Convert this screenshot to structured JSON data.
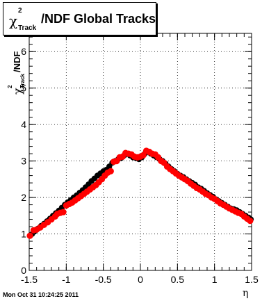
{
  "chart_data": {
    "type": "scatter",
    "title": {
      "symbol": "χ",
      "superscript": "2",
      "subscript": "Track",
      "text": "/NDF  Global Tracks"
    },
    "ylabel": {
      "symbol": "χ",
      "superscript": "2",
      "subscript": "Track",
      "text": "/NDF"
    },
    "xlabel": "η",
    "xlim": [
      -1.5,
      1.5
    ],
    "ylim": [
      0,
      6.5
    ],
    "xticks": [
      -1.5,
      -1,
      -0.5,
      0,
      0.5,
      1,
      1.5
    ],
    "xtick_labels": [
      "-1.5",
      "-1",
      "-0.5",
      "0",
      "0.5",
      "1",
      "1.5"
    ],
    "yticks": [
      0,
      1,
      2,
      3,
      4,
      5,
      6
    ],
    "ytick_labels": [
      "0",
      "1",
      "2",
      "3",
      "4",
      "5",
      "6"
    ],
    "grid": true,
    "series": [
      {
        "color": "#000000",
        "x": [
          -1.48,
          -1.46,
          -1.42,
          -1.38,
          -1.34,
          -1.3,
          -1.26,
          -1.22,
          -1.18,
          -1.14,
          -1.1,
          -1.06,
          -1.02,
          -0.98,
          -0.94,
          -0.9,
          -0.86,
          -0.82,
          -0.78,
          -0.74,
          -0.7,
          -0.66,
          -0.62,
          -0.58,
          -0.54,
          -0.5,
          -0.46,
          -0.42,
          -0.38,
          -0.34,
          -0.3,
          -0.26,
          -0.22,
          -0.18,
          -0.14,
          -0.1,
          -0.06,
          -0.02,
          0.02,
          0.06,
          0.1,
          0.14,
          0.18,
          0.22,
          0.26,
          0.3,
          0.34,
          0.38,
          0.42,
          0.46,
          0.5,
          0.54,
          0.58,
          0.62,
          0.66,
          0.7,
          0.74,
          0.78,
          0.82,
          0.86,
          0.9,
          0.94,
          0.98,
          1.02,
          1.06,
          1.1,
          1.14,
          1.18,
          1.22,
          1.26,
          1.3,
          1.34,
          1.38,
          1.42,
          1.46,
          1.49
        ],
        "y": [
          0.97,
          1.0,
          1.08,
          1.15,
          1.22,
          1.28,
          1.35,
          1.42,
          1.5,
          1.57,
          1.64,
          1.72,
          1.8,
          1.87,
          1.93,
          2.0,
          2.06,
          2.13,
          2.2,
          2.28,
          2.36,
          2.45,
          2.52,
          2.6,
          2.66,
          2.72,
          2.76,
          2.85,
          2.95,
          3.0,
          3.05,
          3.08,
          3.15,
          3.2,
          3.15,
          3.1,
          3.08,
          3.05,
          3.1,
          3.2,
          3.25,
          3.2,
          3.15,
          3.1,
          3.05,
          3.0,
          2.93,
          2.85,
          2.78,
          2.72,
          2.65,
          2.6,
          2.56,
          2.5,
          2.45,
          2.4,
          2.35,
          2.28,
          2.24,
          2.18,
          2.12,
          2.07,
          2.02,
          1.95,
          1.9,
          1.85,
          1.8,
          1.75,
          1.7,
          1.68,
          1.65,
          1.6,
          1.55,
          1.5,
          1.45,
          1.4
        ]
      },
      {
        "color": "#ff0000",
        "x": [
          -1.49,
          -1.44,
          -1.4,
          -1.35,
          -1.3,
          -1.25,
          -1.2,
          -1.15,
          -1.12,
          -1.08,
          -1.04,
          -1.0,
          -0.96,
          -0.92,
          -0.88,
          -0.84,
          -0.8,
          -0.76,
          -0.72,
          -0.68,
          -0.64,
          -0.6,
          -0.56,
          -0.52,
          -0.48,
          -0.44,
          -0.4,
          -0.36,
          -0.32,
          -0.28,
          -0.24,
          -0.2,
          -0.16,
          -0.12,
          -0.08,
          -0.04,
          0.0,
          0.04,
          0.08,
          0.12,
          0.16,
          0.2,
          0.24,
          0.28,
          0.32,
          0.36,
          0.4,
          0.44,
          0.48,
          0.52,
          0.56,
          0.6,
          0.64,
          0.68,
          0.72,
          0.76,
          0.8,
          0.84,
          0.88,
          0.92,
          0.96,
          1.0,
          1.04,
          1.08,
          1.12,
          1.16,
          1.2,
          1.24,
          1.28,
          1.32,
          1.36,
          1.4,
          1.44,
          1.48
        ],
        "y": [
          0.95,
          1.1,
          1.12,
          1.18,
          1.25,
          1.32,
          1.4,
          1.48,
          1.55,
          1.58,
          1.6,
          1.78,
          1.82,
          1.86,
          1.92,
          1.98,
          2.04,
          2.1,
          2.16,
          2.22,
          2.28,
          2.34,
          2.42,
          2.5,
          2.6,
          2.68,
          2.72,
          2.98,
          3.0,
          3.1,
          3.12,
          3.22,
          3.2,
          3.18,
          3.12,
          3.1,
          3.12,
          3.16,
          3.28,
          3.25,
          3.2,
          3.18,
          3.1,
          3.0,
          2.95,
          2.85,
          2.78,
          2.72,
          2.66,
          2.6,
          2.55,
          2.5,
          2.45,
          2.38,
          2.32,
          2.26,
          2.22,
          2.16,
          2.1,
          2.06,
          2.0,
          1.96,
          1.9,
          1.84,
          1.8,
          1.75,
          1.7,
          1.66,
          1.62,
          1.58,
          1.55,
          1.48,
          1.42,
          1.36
        ]
      }
    ]
  },
  "footer": {
    "datestamp": "Mon Oct 31 10:24:25 2011"
  }
}
